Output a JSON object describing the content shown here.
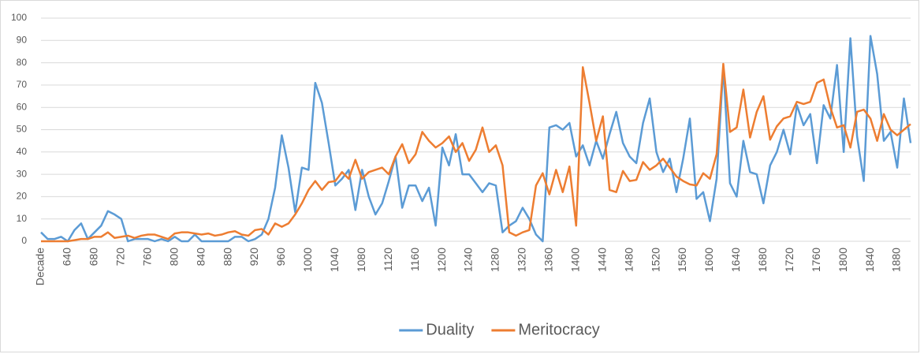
{
  "chart_data": {
    "type": "line",
    "categories": [
      "Decade",
      null,
      null,
      null,
      640,
      null,
      null,
      null,
      680,
      null,
      null,
      null,
      720,
      null,
      null,
      null,
      760,
      null,
      null,
      null,
      800,
      null,
      null,
      null,
      840,
      null,
      null,
      null,
      880,
      null,
      null,
      null,
      920,
      null,
      null,
      null,
      960,
      null,
      null,
      null,
      1000,
      null,
      null,
      null,
      1040,
      null,
      null,
      null,
      1080,
      null,
      null,
      null,
      1120,
      null,
      null,
      null,
      1160,
      null,
      null,
      null,
      1200,
      null,
      null,
      null,
      1240,
      null,
      null,
      null,
      1280,
      null,
      null,
      null,
      1320,
      null,
      null,
      null,
      1360,
      null,
      null,
      null,
      1400,
      null,
      null,
      null,
      1440,
      null,
      null,
      null,
      1480,
      null,
      null,
      null,
      1520,
      null,
      null,
      null,
      1560,
      null,
      null,
      null,
      1600,
      null,
      null,
      null,
      1640,
      null,
      null,
      null,
      1680,
      null,
      null,
      null,
      1720,
      null,
      null,
      null,
      1760,
      null,
      null,
      null,
      1800,
      null,
      null,
      null,
      1840,
      null,
      null,
      null,
      1880,
      null,
      null
    ],
    "series": [
      {
        "name": "Duality",
        "color": "#5b9bd5",
        "values": [
          4,
          1,
          1,
          2,
          0,
          5,
          8,
          1,
          4,
          7,
          13.5,
          12,
          10,
          0,
          1,
          1,
          1,
          0,
          1,
          0,
          2,
          0,
          0,
          3,
          0,
          0,
          0,
          0,
          0,
          2,
          2,
          0,
          1,
          3,
          10,
          24,
          47.5,
          33,
          13,
          33,
          32,
          71,
          62,
          44,
          25,
          28,
          32,
          14,
          32,
          20,
          12,
          17,
          27,
          38,
          15,
          25,
          25,
          18,
          24,
          7,
          42,
          34,
          48,
          30,
          30,
          26,
          22,
          26,
          25,
          4,
          7,
          9,
          15,
          10,
          3,
          0,
          51,
          52,
          50,
          53,
          38,
          43,
          34,
          45,
          37,
          48,
          58,
          44,
          38,
          35,
          53,
          64,
          40,
          31,
          37,
          22,
          37,
          55,
          19,
          22,
          9,
          28,
          78,
          26,
          20,
          45,
          31,
          30,
          17,
          34,
          40,
          50,
          39,
          61,
          52,
          57,
          35,
          61,
          55,
          79,
          40,
          91,
          47,
          27,
          92,
          75,
          45,
          49,
          33,
          64,
          44
        ]
      },
      {
        "name": "Meritocracy",
        "color": "#ed7d31",
        "values": [
          0,
          0,
          0,
          0,
          0,
          0.5,
          1,
          1,
          2,
          2,
          4,
          1.5,
          2,
          2.5,
          1.5,
          2.5,
          3,
          3,
          2,
          1,
          3.5,
          4,
          4,
          3.5,
          3,
          3.5,
          2.5,
          3,
          4,
          4.5,
          3,
          2.5,
          5,
          5.5,
          3,
          8,
          6.5,
          8,
          12,
          17,
          23,
          27,
          23,
          26.5,
          27,
          31,
          28,
          36.5,
          28,
          31,
          32,
          33,
          30,
          38,
          43.5,
          35,
          39,
          49,
          45,
          42,
          44,
          47,
          40,
          44,
          36,
          41,
          51,
          40,
          43,
          34,
          4,
          2.5,
          4,
          5,
          25,
          30.5,
          21,
          32,
          22,
          33.5,
          7,
          78,
          62,
          45,
          56,
          23,
          22,
          31.5,
          27,
          27.5,
          35.5,
          32,
          34,
          37,
          33,
          29,
          27,
          25.5,
          25,
          30.5,
          28,
          39,
          79.5,
          49,
          51,
          68,
          46.5,
          58,
          65,
          45.5,
          51.5,
          55,
          56,
          62.5,
          61.5,
          62.5,
          71,
          72.5,
          60,
          51,
          52,
          42,
          58,
          59,
          55,
          45,
          57,
          50,
          47.5,
          50,
          52.5
        ]
      }
    ],
    "ylim": [
      0,
      100
    ],
    "yticks": [
      0,
      10,
      20,
      30,
      40,
      50,
      60,
      70,
      80,
      90,
      100
    ],
    "grid": true,
    "legend": "bottom"
  }
}
